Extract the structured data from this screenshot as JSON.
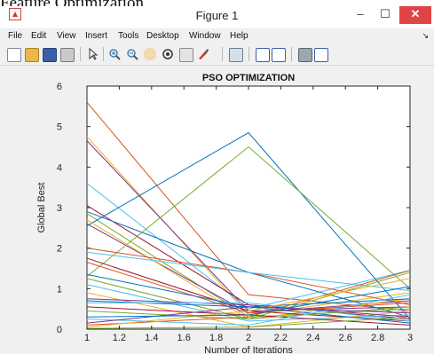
{
  "caption": "Feature Optimization",
  "window": {
    "title": "Figure 1",
    "minimize": "–",
    "maximize": "☐",
    "close": "✕"
  },
  "menu": [
    "File",
    "Edit",
    "View",
    "Insert",
    "Tools",
    "Desktop",
    "Window",
    "Help"
  ],
  "menu_overflow": "↘",
  "toolbar_icons": [
    "new-figure-icon",
    "open-file-icon",
    "save-icon",
    "print-icon",
    "select-arrow-icon",
    "zoom-in-icon",
    "zoom-out-icon",
    "pan-hand-icon",
    "rotate-3d-icon",
    "data-cursor-icon",
    "brush-icon",
    "link-plot-icon",
    "colorbar-icon",
    "legend-icon",
    "hide-plot-tools-icon",
    "show-plot-tools-icon"
  ],
  "colors": {
    "background": "#f0f0f0",
    "close": "#e04343"
  },
  "chart_data": {
    "type": "line",
    "title": "PSO OPTIMIZATION",
    "xlabel": "Number of Iterations",
    "ylabel": "Global Best",
    "xlim": [
      1,
      3
    ],
    "ylim": [
      0,
      6
    ],
    "xticks": [
      "1",
      "1.2",
      "1.4",
      "1.6",
      "1.8",
      "2",
      "2.2",
      "2.4",
      "2.6",
      "2.8",
      "3"
    ],
    "yticks": [
      "0",
      "1",
      "2",
      "3",
      "4",
      "5",
      "6"
    ],
    "x": [
      1,
      2,
      3
    ],
    "series": [
      {
        "color": "#d95319",
        "values": [
          5.6,
          0.85,
          0.45
        ]
      },
      {
        "color": "#edb120",
        "values": [
          4.75,
          0.35,
          0.9
        ]
      },
      {
        "color": "#7e2f8e",
        "values": [
          4.65,
          0.45,
          0.55
        ]
      },
      {
        "color": "#4dbeee",
        "values": [
          3.6,
          0.5,
          1.45
        ]
      },
      {
        "color": "#a2142f",
        "values": [
          3.05,
          0.6,
          0.25
        ]
      },
      {
        "color": "#0072bd",
        "values": [
          2.9,
          1.4,
          0.3
        ]
      },
      {
        "color": "#77ac30",
        "values": [
          2.85,
          0.3,
          0.5
        ]
      },
      {
        "color": "#7e2f8e",
        "values": [
          2.6,
          0.4,
          0.7
        ]
      },
      {
        "color": "#0072bd",
        "values": [
          2.55,
          4.85,
          0.25
        ]
      },
      {
        "color": "#77ac30",
        "values": [
          1.3,
          4.5,
          1.0
        ]
      },
      {
        "color": "#edb120",
        "values": [
          2.7,
          0.25,
          0.75
        ]
      },
      {
        "color": "#d95319",
        "values": [
          2.0,
          1.4,
          0.6
        ]
      },
      {
        "color": "#4dbeee",
        "values": [
          1.9,
          1.4,
          0.95
        ]
      },
      {
        "color": "#a2142f",
        "values": [
          1.75,
          0.45,
          0.2
        ]
      },
      {
        "color": "#d95319",
        "values": [
          1.65,
          0.4,
          0.65
        ]
      },
      {
        "color": "#0072bd",
        "values": [
          1.35,
          0.55,
          0.75
        ]
      },
      {
        "color": "#77ac30",
        "values": [
          1.25,
          0.25,
          1.4
        ]
      },
      {
        "color": "#4dbeee",
        "values": [
          1.1,
          0.2,
          0.35
        ]
      },
      {
        "color": "#edb120",
        "values": [
          0.9,
          0.05,
          0.45
        ]
      },
      {
        "color": "#7e2f8e",
        "values": [
          0.75,
          0.6,
          0.3
        ]
      },
      {
        "color": "#0072bd",
        "values": [
          0.7,
          0.55,
          0.15
        ]
      },
      {
        "color": "#4dbeee",
        "values": [
          0.65,
          0.65,
          0.2
        ]
      },
      {
        "color": "#a2142f",
        "values": [
          0.55,
          0.35,
          0.1
        ]
      },
      {
        "color": "#77ac30",
        "values": [
          0.45,
          0.25,
          0.55
        ]
      },
      {
        "color": "#d95319",
        "values": [
          0.1,
          0.3,
          1.45
        ]
      },
      {
        "color": "#edb120",
        "values": [
          0.05,
          0.45,
          1.25
        ]
      },
      {
        "color": "#4dbeee",
        "values": [
          0.25,
          0.1,
          0.85
        ]
      },
      {
        "color": "#7e2f8e",
        "values": [
          0.15,
          0.55,
          0.4
        ]
      },
      {
        "color": "#0072bd",
        "values": [
          0.3,
          0.35,
          1.05
        ]
      },
      {
        "color": "#77ac30",
        "values": [
          0.02,
          0.05,
          0.3
        ]
      }
    ],
    "grid": false,
    "legend": "none"
  }
}
